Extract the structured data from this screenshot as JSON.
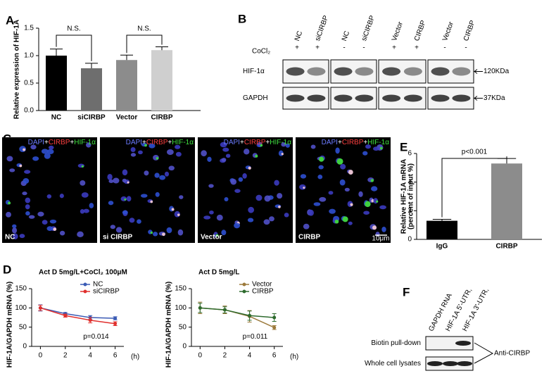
{
  "panel_labels": [
    "A",
    "B",
    "C",
    "D",
    "E",
    "F"
  ],
  "chart_data": [
    {
      "type": "bar",
      "ylabel": "Relative expression of HIF-1A",
      "categories": [
        "NC",
        "siCIRBP",
        "Vector",
        "CIRBP"
      ],
      "values": [
        1.0,
        0.77,
        0.92,
        1.1
      ],
      "errors": [
        0.12,
        0.09,
        0.09,
        0.06
      ],
      "colors": [
        "#000000",
        "#6e6e6e",
        "#8c8c8c",
        "#cfcfcf"
      ],
      "ylim": [
        0,
        1.5
      ],
      "yticks": [
        {
          "value": 0,
          "label": "0.0"
        },
        0.5,
        {
          "value": 1,
          "label": "1.0"
        },
        1.5
      ],
      "annotations": [
        "N.S.",
        "N.S."
      ]
    },
    {
      "type": "bar",
      "ylabel": [
        "Relative HIF-1A mRNA",
        "(percent of input %)"
      ],
      "categories": [
        "IgG",
        "CIRBP"
      ],
      "values": [
        1.3,
        5.3
      ],
      "errors": [
        0.1,
        0.35
      ],
      "colors": [
        "#000000",
        "#8c8c8c"
      ],
      "ylim": [
        0,
        6
      ],
      "yticks": [
        0,
        2,
        4,
        6
      ],
      "annotations": [
        "p<0.001"
      ]
    },
    {
      "type": "line",
      "title": "Act D 5mg/L+CoCl₂ 100μM",
      "ylabel": "HIF-1A/GAPDH mRNA (%)",
      "xlabel": "(h)",
      "x": [
        0,
        2,
        4,
        6
      ],
      "xlim": [
        -0.7,
        6.7
      ],
      "xticks": [
        0,
        2,
        4,
        6
      ],
      "ylim": [
        0,
        150
      ],
      "yticks": [
        0,
        50,
        100,
        150
      ],
      "legend": "top-right",
      "series": [
        {
          "name": "NC",
          "color": "#3b5bb5",
          "values": [
            100,
            85,
            75,
            73
          ],
          "errors": [
            8,
            3,
            5,
            4
          ]
        },
        {
          "name": "siCIRBP",
          "color": "#e0302e",
          "values": [
            100,
            80,
            68,
            59
          ],
          "errors": [
            7,
            4,
            7,
            5
          ]
        }
      ],
      "annotations": [
        "p=0.014"
      ]
    },
    {
      "type": "line",
      "title": "Act D 5mg/L",
      "ylabel": "HIF-1A/GAPDH mRNA (%)",
      "xlabel": "(h)",
      "x": [
        0,
        2,
        4,
        6
      ],
      "xlim": [
        -0.7,
        6.7
      ],
      "xticks": [
        0,
        2,
        4,
        6
      ],
      "ylim": [
        0,
        150
      ],
      "yticks": [
        0,
        50,
        100,
        150
      ],
      "legend": "top-right",
      "series": [
        {
          "name": "Vector",
          "color": "#9c7a3c",
          "values": [
            100,
            95,
            78,
            49
          ],
          "errors": [
            15,
            10,
            15,
            5
          ]
        },
        {
          "name": "CIRBP",
          "color": "#2e6b2e",
          "values": [
            100,
            95,
            80,
            75
          ],
          "errors": [
            12,
            8,
            12,
            10
          ]
        }
      ],
      "annotations": [
        "p=0.011"
      ]
    }
  ],
  "blot": {
    "lanes": [
      "NC",
      "siCIRBP",
      "NC",
      "siCIRBP",
      "Vector",
      "CIRBP",
      "Vector",
      "CIRBP"
    ],
    "treatment": "CoCl₂",
    "signs": [
      "+",
      "+",
      "-",
      "-",
      "+",
      "+",
      "-",
      "-"
    ],
    "rows": [
      "HIF-1α",
      "GAPDH"
    ],
    "sizes": [
      "120KDa",
      "37KDa"
    ]
  },
  "images": {
    "stain": [
      "DAPI",
      "+",
      "CIRBP",
      "+",
      "HIF-1α"
    ],
    "labels": [
      "NC",
      "si CIRBP",
      "Vector",
      "CIRBP"
    ],
    "scale": "10μm"
  },
  "pulldown": {
    "lanes": [
      "GAPDH RNA",
      "HIF-1A 5'-UTR,",
      "HIF-1A 3'-UTR,"
    ],
    "rows": [
      "Biotin pull-down",
      "Whole cell lysates"
    ],
    "antibody": "Anti-CIRBP"
  }
}
